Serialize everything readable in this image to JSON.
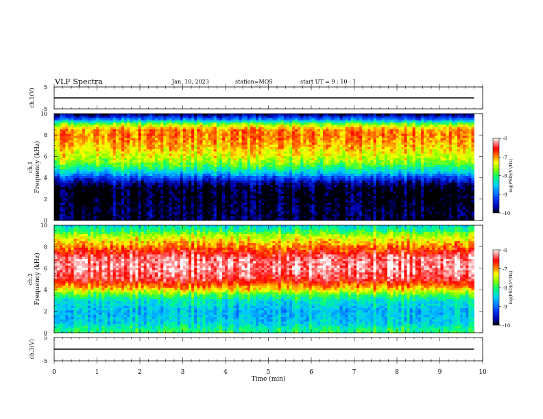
{
  "header": {
    "title": "VLF Spectra",
    "date": "Jan. 10, 2023",
    "station": "station=MOS",
    "start": "start UT =  9 : 10 : 1"
  },
  "chart_data": [
    {
      "type": "line",
      "title": "",
      "ylabel": "ch.1(V)",
      "ylim": [
        -5,
        5
      ],
      "yticks": [
        "5",
        "-5"
      ],
      "xlim": [
        0,
        10
      ],
      "series": [
        {
          "x": [
            0,
            9.8
          ],
          "values": [
            0,
            0
          ]
        }
      ]
    },
    {
      "type": "heatmap",
      "ylabel": "ch.1 Frequency (kHz)",
      "ylim": [
        0,
        10
      ],
      "yticks": [
        "0",
        "2",
        "4",
        "6",
        "8",
        "10"
      ],
      "xlim": [
        0,
        10
      ],
      "data_extent_min": 9.8,
      "colorbar": {
        "label": "log(PSD)(V²/Hz)",
        "range": [
          -10,
          -6
        ],
        "ticks": [
          "-6",
          "-7",
          "-8",
          "-9",
          "-10"
        ]
      },
      "spectral_profile": {
        "freq_khz": [
          0,
          0.5,
          1,
          2,
          3,
          3.5,
          4,
          4.5,
          5,
          5.5,
          6,
          7,
          8,
          8.5,
          9,
          9.5,
          10
        ],
        "log_psd": [
          -9.9,
          -9.9,
          -9.9,
          -10,
          -10,
          -9.7,
          -9.2,
          -8.5,
          -8.0,
          -7.6,
          -7.4,
          -7.1,
          -6.9,
          -7.0,
          -7.6,
          -9.0,
          -9.9
        ]
      }
    },
    {
      "type": "heatmap",
      "ylabel": "ch.2 Frequency (kHz)",
      "ylim": [
        0,
        10
      ],
      "yticks": [
        "0",
        "2",
        "4",
        "6",
        "8",
        "10"
      ],
      "xlim": [
        0,
        10
      ],
      "data_extent_min": 9.8,
      "colorbar": {
        "label": "log(PSD)(V²/Hz)",
        "range": [
          -10,
          -6
        ],
        "ticks": [
          "-6",
          "-7",
          "-8",
          "-9",
          "-10"
        ]
      },
      "spectral_profile": {
        "freq_khz": [
          0,
          0.5,
          1,
          2,
          3,
          3.5,
          4,
          4.5,
          5,
          6,
          7,
          7.5,
          8,
          8.5,
          9,
          9.5,
          10
        ],
        "log_psd": [
          -8.0,
          -8.2,
          -8.5,
          -8.6,
          -8.3,
          -7.9,
          -7.2,
          -6.8,
          -6.4,
          -6.2,
          -6.3,
          -6.6,
          -6.9,
          -7.2,
          -7.5,
          -8.0,
          -8.4
        ]
      }
    },
    {
      "type": "line",
      "ylabel": "ch.3(V)",
      "ylim": [
        -5,
        5
      ],
      "yticks": [
        "5",
        "-5"
      ],
      "xlim": [
        0,
        10
      ],
      "xticks": [
        "0",
        "1",
        "2",
        "3",
        "4",
        "5",
        "6",
        "7",
        "8",
        "9",
        "10"
      ],
      "xlabel": "Time (min)",
      "series": [
        {
          "x": [
            0,
            9.8
          ],
          "values": [
            0,
            0
          ]
        }
      ]
    }
  ]
}
